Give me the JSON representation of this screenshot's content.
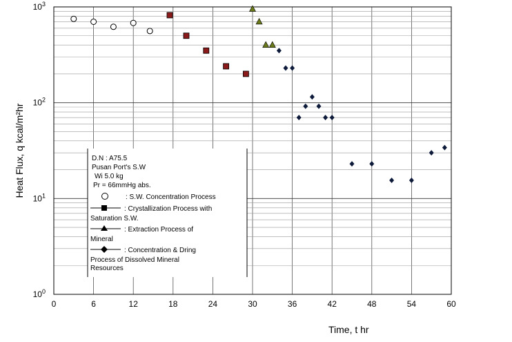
{
  "chart_data": {
    "type": "scatter",
    "xlabel": "Time, t hr",
    "ylabel": "Heat Flux, q kcal/m²hr",
    "y_scale": "log",
    "xlim": [
      0,
      60
    ],
    "ylim": [
      1,
      1000
    ],
    "x_ticks": [
      "0",
      "6",
      "12",
      "18",
      "24",
      "30",
      "36",
      "42",
      "48",
      "54",
      "60"
    ],
    "y_ticks": [
      {
        "base": "10",
        "exp": "0"
      },
      {
        "base": "10",
        "exp": "1"
      },
      {
        "base": "10",
        "exp": "2"
      },
      {
        "base": "10",
        "exp": "3"
      }
    ],
    "grid": true,
    "legend_placement": "lower-left",
    "legend_header": [
      "D.N : A75.5",
      "Pusan Port's S.W",
      "Wi 5.0 kg",
      "Pr = 66mmHg abs."
    ],
    "series": [
      {
        "name": ": S.W. Concentration Process",
        "marker": "open-circle",
        "color": "#000000",
        "x": [
          3,
          6,
          9,
          12,
          14.5
        ],
        "y": [
          750,
          700,
          620,
          680,
          560
        ]
      },
      {
        "name": ": Crystallization Process with Saturation S.W.",
        "marker": "square",
        "color": "#8b1a1a",
        "x": [
          17.5,
          20,
          23,
          26,
          29
        ],
        "y": [
          820,
          500,
          350,
          240,
          200
        ]
      },
      {
        "name": ": Extraction Process of Mineral",
        "marker": "triangle",
        "color": "#6b7a1a",
        "x": [
          30,
          31,
          32,
          33
        ],
        "y": [
          950,
          700,
          400,
          400
        ]
      },
      {
        "name": ": Concentration & Dring Process of Dissolved Mineral Resources",
        "marker": "diamond",
        "color": "#0d1a3a",
        "x": [
          34,
          35,
          36,
          37,
          38,
          39,
          40,
          41,
          42,
          45,
          48,
          51,
          54,
          57,
          59
        ],
        "y": [
          350,
          230,
          230,
          70,
          92,
          115,
          92,
          70,
          70,
          23,
          23,
          15.5,
          15.5,
          30,
          34
        ]
      }
    ]
  }
}
